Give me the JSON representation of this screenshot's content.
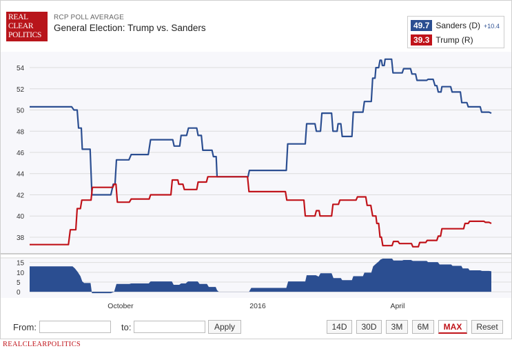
{
  "header": {
    "logo_lines": [
      "REAL",
      "CLEAR",
      "POLITICS"
    ],
    "subtitle": "RCP POLL AVERAGE",
    "title": "General Election: Trump vs. Sanders"
  },
  "legend": {
    "entries": [
      {
        "value": "49.7",
        "name": "Sanders (D)",
        "spread": "+10.4",
        "color": "#2b4e91"
      },
      {
        "value": "39.3",
        "name": "Trump (R)",
        "spread": "",
        "color": "#c0131a"
      }
    ]
  },
  "chart_data": {
    "type": "line",
    "title": "General Election: Trump vs. Sanders",
    "x_range": [
      0,
      100
    ],
    "x_tick_labels": [
      {
        "label": "October",
        "x": 19.7
      },
      {
        "label": "2016",
        "x": 49.4
      },
      {
        "label": "April",
        "x": 79.7
      }
    ],
    "ylim": [
      36.5,
      55.5
    ],
    "yticks": [
      38,
      40,
      42,
      44,
      46,
      48,
      50,
      52,
      54
    ],
    "series": [
      {
        "name": "Sanders (D)",
        "color": "#2b4e91",
        "points": [
          [
            0,
            50.3
          ],
          [
            9.1,
            50.3
          ],
          [
            9.6,
            50.0
          ],
          [
            10.3,
            50.0
          ],
          [
            10.6,
            48.3
          ],
          [
            11.2,
            48.3
          ],
          [
            11.4,
            46.3
          ],
          [
            13.1,
            46.3
          ],
          [
            13.5,
            42.0
          ],
          [
            17.6,
            42.0
          ],
          [
            18.1,
            43.0
          ],
          [
            18.5,
            43.0
          ],
          [
            18.8,
            45.3
          ],
          [
            21.5,
            45.3
          ],
          [
            22.0,
            45.8
          ],
          [
            25.7,
            45.8
          ],
          [
            26.2,
            47.2
          ],
          [
            31.0,
            47.2
          ],
          [
            31.3,
            46.6
          ],
          [
            32.5,
            46.6
          ],
          [
            32.8,
            47.6
          ],
          [
            34.0,
            47.6
          ],
          [
            34.4,
            48.3
          ],
          [
            36.2,
            48.3
          ],
          [
            36.5,
            47.6
          ],
          [
            37.2,
            47.6
          ],
          [
            37.5,
            46.2
          ],
          [
            39.5,
            46.2
          ],
          [
            39.8,
            45.6
          ],
          [
            40.4,
            45.6
          ],
          [
            40.6,
            43.7
          ],
          [
            47.3,
            43.7
          ],
          [
            47.6,
            44.3
          ],
          [
            55.6,
            44.3
          ],
          [
            55.9,
            46.8
          ],
          [
            59.7,
            46.8
          ],
          [
            60.0,
            48.7
          ],
          [
            61.8,
            48.7
          ],
          [
            62.1,
            48.0
          ],
          [
            63.0,
            48.0
          ],
          [
            63.3,
            49.7
          ],
          [
            65.4,
            49.7
          ],
          [
            65.7,
            48.0
          ],
          [
            66.6,
            48.0
          ],
          [
            66.8,
            48.7
          ],
          [
            67.4,
            48.7
          ],
          [
            67.7,
            47.5
          ],
          [
            69.8,
            47.5
          ],
          [
            70.1,
            49.8
          ],
          [
            72.2,
            49.8
          ],
          [
            72.5,
            50.8
          ],
          [
            74.0,
            50.8
          ],
          [
            74.3,
            53.0
          ],
          [
            74.8,
            53.0
          ],
          [
            75.0,
            54.0
          ],
          [
            75.6,
            54.0
          ],
          [
            75.9,
            54.7
          ],
          [
            76.2,
            54.7
          ],
          [
            76.4,
            54.2
          ],
          [
            76.8,
            54.2
          ],
          [
            77.0,
            54.8
          ],
          [
            78.4,
            54.8
          ],
          [
            78.7,
            53.5
          ],
          [
            80.7,
            53.5
          ],
          [
            81.0,
            53.9
          ],
          [
            82.5,
            53.9
          ],
          [
            82.8,
            53.4
          ],
          [
            83.6,
            53.4
          ],
          [
            83.9,
            52.8
          ],
          [
            86.0,
            52.8
          ],
          [
            86.3,
            52.9
          ],
          [
            87.4,
            52.9
          ],
          [
            87.8,
            52.3
          ],
          [
            88.2,
            52.3
          ],
          [
            88.5,
            51.7
          ],
          [
            89.1,
            51.7
          ],
          [
            89.3,
            52.2
          ],
          [
            91.2,
            52.2
          ],
          [
            91.5,
            51.7
          ],
          [
            93.3,
            51.7
          ],
          [
            93.6,
            50.7
          ],
          [
            94.7,
            50.7
          ],
          [
            95.0,
            50.3
          ],
          [
            97.6,
            50.3
          ],
          [
            97.9,
            49.8
          ],
          [
            99.5,
            49.8
          ],
          [
            100,
            49.7
          ]
        ]
      },
      {
        "name": "Trump (R)",
        "color": "#c0131a",
        "points": [
          [
            0,
            37.3
          ],
          [
            8.4,
            37.3
          ],
          [
            8.8,
            38.7
          ],
          [
            10.0,
            38.7
          ],
          [
            10.3,
            40.7
          ],
          [
            11.0,
            40.7
          ],
          [
            11.3,
            41.5
          ],
          [
            13.3,
            41.5
          ],
          [
            13.6,
            42.7
          ],
          [
            18.0,
            42.7
          ],
          [
            18.3,
            43.0
          ],
          [
            18.7,
            43.0
          ],
          [
            19.0,
            41.3
          ],
          [
            21.6,
            41.3
          ],
          [
            22.0,
            41.6
          ],
          [
            25.9,
            41.6
          ],
          [
            26.2,
            42.0
          ],
          [
            30.6,
            42.0
          ],
          [
            30.9,
            43.4
          ],
          [
            32.1,
            43.4
          ],
          [
            32.3,
            43.0
          ],
          [
            33.2,
            43.0
          ],
          [
            33.5,
            42.5
          ],
          [
            36.2,
            42.5
          ],
          [
            36.5,
            43.2
          ],
          [
            38.3,
            43.2
          ],
          [
            38.6,
            43.7
          ],
          [
            47.2,
            43.7
          ],
          [
            47.5,
            42.3
          ],
          [
            55.4,
            42.3
          ],
          [
            55.7,
            41.5
          ],
          [
            59.4,
            41.5
          ],
          [
            59.7,
            40.0
          ],
          [
            61.8,
            40.0
          ],
          [
            62.1,
            40.5
          ],
          [
            62.7,
            40.5
          ],
          [
            62.9,
            40.0
          ],
          [
            65.4,
            40.0
          ],
          [
            65.7,
            41.1
          ],
          [
            66.9,
            41.1
          ],
          [
            67.2,
            41.5
          ],
          [
            70.7,
            41.5
          ],
          [
            71.0,
            41.8
          ],
          [
            72.8,
            41.8
          ],
          [
            73.1,
            41.0
          ],
          [
            73.9,
            41.0
          ],
          [
            74.3,
            40.0
          ],
          [
            75.0,
            40.0
          ],
          [
            75.2,
            39.3
          ],
          [
            75.6,
            39.3
          ],
          [
            75.9,
            38.0
          ],
          [
            76.2,
            38.0
          ],
          [
            76.5,
            37.2
          ],
          [
            78.5,
            37.2
          ],
          [
            78.8,
            37.6
          ],
          [
            79.8,
            37.6
          ],
          [
            80.1,
            37.4
          ],
          [
            82.7,
            37.4
          ],
          [
            83.0,
            37.1
          ],
          [
            84.2,
            37.1
          ],
          [
            84.5,
            37.5
          ],
          [
            85.8,
            37.5
          ],
          [
            86.1,
            37.7
          ],
          [
            88.2,
            37.7
          ],
          [
            88.5,
            38.1
          ],
          [
            89.0,
            38.1
          ],
          [
            89.3,
            38.8
          ],
          [
            94.0,
            38.8
          ],
          [
            94.3,
            39.3
          ],
          [
            95.0,
            39.3
          ],
          [
            95.3,
            39.5
          ],
          [
            98.4,
            39.5
          ],
          [
            98.7,
            39.4
          ],
          [
            99.5,
            39.4
          ],
          [
            100,
            39.3
          ]
        ]
      }
    ],
    "spread_panel": {
      "yticks": [
        0,
        5,
        10,
        15
      ],
      "ylim": [
        -1,
        17
      ],
      "fill_color": "#2b4e91",
      "points": [
        [
          0,
          13.0
        ],
        [
          9.3,
          13.0
        ],
        [
          9.8,
          12.0
        ],
        [
          10.4,
          10.2
        ],
        [
          11.0,
          8.0
        ],
        [
          11.4,
          5.3
        ],
        [
          11.8,
          4.5
        ],
        [
          13.2,
          4.5
        ],
        [
          13.5,
          -0.7
        ],
        [
          17.6,
          -0.7
        ],
        [
          18.3,
          0
        ],
        [
          18.8,
          4.0
        ],
        [
          21.6,
          4.0
        ],
        [
          22.0,
          4.3
        ],
        [
          25.8,
          4.3
        ],
        [
          26.2,
          5.3
        ],
        [
          30.8,
          5.3
        ],
        [
          31.2,
          3.6
        ],
        [
          32.4,
          3.6
        ],
        [
          32.8,
          4.3
        ],
        [
          33.8,
          4.3
        ],
        [
          34.3,
          5.3
        ],
        [
          36.4,
          5.3
        ],
        [
          36.8,
          4.0
        ],
        [
          38.4,
          4.0
        ],
        [
          38.8,
          2.5
        ],
        [
          40.3,
          2.5
        ],
        [
          40.6,
          0.8
        ],
        [
          41.0,
          0
        ],
        [
          47.5,
          0
        ],
        [
          48.0,
          2.0
        ],
        [
          55.6,
          2.0
        ],
        [
          56.0,
          5.3
        ],
        [
          59.7,
          5.3
        ],
        [
          60.0,
          8.5
        ],
        [
          62.0,
          8.5
        ],
        [
          62.6,
          7.8
        ],
        [
          63.0,
          9.5
        ],
        [
          65.4,
          9.5
        ],
        [
          65.8,
          7.0
        ],
        [
          67.4,
          7.0
        ],
        [
          67.7,
          6.0
        ],
        [
          69.8,
          6.0
        ],
        [
          70.1,
          8.0
        ],
        [
          72.2,
          8.0
        ],
        [
          72.5,
          9.8
        ],
        [
          74.0,
          9.8
        ],
        [
          74.4,
          13.0
        ],
        [
          75.0,
          14.3
        ],
        [
          75.6,
          15.5
        ],
        [
          76.0,
          16.5
        ],
        [
          76.5,
          17.0
        ],
        [
          78.5,
          17.0
        ],
        [
          78.8,
          16.0
        ],
        [
          80.7,
          16.0
        ],
        [
          81.0,
          16.3
        ],
        [
          82.6,
          16.3
        ],
        [
          83.0,
          15.8
        ],
        [
          86.0,
          15.8
        ],
        [
          86.3,
          15.2
        ],
        [
          88.4,
          15.2
        ],
        [
          88.8,
          14.0
        ],
        [
          91.3,
          14.0
        ],
        [
          91.6,
          13.3
        ],
        [
          93.5,
          13.3
        ],
        [
          93.8,
          12.0
        ],
        [
          95.0,
          12.0
        ],
        [
          95.3,
          11.0
        ],
        [
          97.6,
          11.0
        ],
        [
          98.0,
          10.7
        ],
        [
          99.5,
          10.7
        ],
        [
          100,
          10.5
        ]
      ]
    }
  },
  "controls": {
    "from_label": "From:",
    "to_label": "to:",
    "apply_label": "Apply",
    "ranges": [
      "14D",
      "30D",
      "3M",
      "6M",
      "MAX",
      "Reset"
    ],
    "active_range": "MAX"
  },
  "footer": {
    "text": "REALCLEARPOLITICS"
  }
}
